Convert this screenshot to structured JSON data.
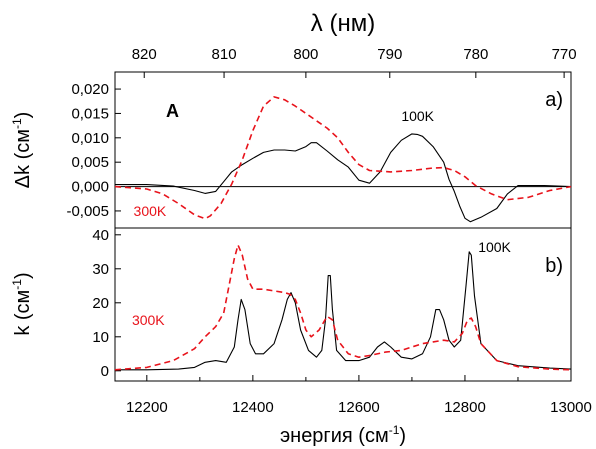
{
  "top_axis": {
    "label": "λ (нм)",
    "ticks": [
      {
        "label": "820",
        "nm": 820
      },
      {
        "label": "810",
        "nm": 810
      },
      {
        "label": "800",
        "nm": 800
      },
      {
        "label": "790",
        "nm": 790
      },
      {
        "label": "780",
        "nm": 780
      },
      {
        "label": "770",
        "nm": 770
      }
    ]
  },
  "x_axis": {
    "label_main": "энергия  (см",
    "label_sup": "-1",
    "label_close": ")",
    "range": [
      12140,
      13000
    ],
    "tick_labels": [
      "12200",
      "12400",
      "12600",
      "12800",
      "13000"
    ]
  },
  "chart_data": [
    {
      "id": "a",
      "type": "line",
      "panel_label": "a)",
      "letter": "A",
      "ylabel_main": "Δk (см",
      "ylabel_sup": "-1",
      "ylabel_close": ")",
      "ylim": [
        -0.0085,
        0.0235
      ],
      "yticks": [
        -0.005,
        0.0,
        0.005,
        0.01,
        0.015,
        0.02
      ],
      "ytick_labels": [
        "-0,005",
        "0,000",
        "0,005",
        "0,010",
        "0,015",
        "0,020"
      ],
      "zero_line": true,
      "series": [
        {
          "name": "100K",
          "color": "#000000",
          "dash": "",
          "x": [
            12140,
            12200,
            12250,
            12290,
            12310,
            12330,
            12345,
            12360,
            12380,
            12400,
            12420,
            12440,
            12460,
            12480,
            12500,
            12510,
            12520,
            12540,
            12560,
            12580,
            12600,
            12620,
            12640,
            12660,
            12680,
            12700,
            12710,
            12720,
            12740,
            12760,
            12770,
            12780,
            12790,
            12800,
            12810,
            12830,
            12860,
            12880,
            12900,
            12950,
            13000
          ],
          "y": [
            0.0004,
            0.0004,
            0.0001,
            -0.0008,
            -0.0014,
            -0.001,
            0.001,
            0.003,
            0.0045,
            0.0058,
            0.007,
            0.0075,
            0.0075,
            0.0073,
            0.0082,
            0.009,
            0.009,
            0.0073,
            0.0055,
            0.004,
            0.0013,
            0.0007,
            0.003,
            0.007,
            0.0095,
            0.0108,
            0.0107,
            0.0103,
            0.0082,
            0.005,
            0.0015,
            -0.001,
            -0.004,
            -0.0065,
            -0.0072,
            -0.0063,
            -0.0045,
            -0.0015,
            0.0002,
            0.0002,
            0.0
          ]
        },
        {
          "name": "300K",
          "color": "#e8131b",
          "dash": "6,4",
          "x": [
            12140,
            12200,
            12230,
            12260,
            12290,
            12310,
            12320,
            12340,
            12360,
            12380,
            12400,
            12420,
            12440,
            12460,
            12480,
            12500,
            12520,
            12540,
            12560,
            12580,
            12600,
            12620,
            12660,
            12700,
            12740,
            12760,
            12780,
            12800,
            12820,
            12850,
            12880,
            12920,
            12960,
            13000
          ],
          "y": [
            0.0,
            -0.0005,
            -0.0015,
            -0.0035,
            -0.0058,
            -0.0066,
            -0.006,
            -0.0035,
            0.0005,
            0.0055,
            0.0115,
            0.0165,
            0.0184,
            0.0178,
            0.0165,
            0.015,
            0.0135,
            0.012,
            0.01,
            0.007,
            0.0045,
            0.0033,
            0.003,
            0.0033,
            0.0038,
            0.0039,
            0.0033,
            0.002,
            0.0002,
            -0.0015,
            -0.0027,
            -0.0022,
            -0.0008,
            0.0
          ]
        }
      ],
      "annotations": [
        {
          "text": "100K",
          "color": "#000000",
          "x": 12680,
          "y": 0.0135
        },
        {
          "text": "300K",
          "color": "#e8131b",
          "x": 12175,
          "y": -0.006
        }
      ]
    },
    {
      "id": "b",
      "type": "line",
      "panel_label": "b)",
      "ylabel_main": "k (см",
      "ylabel_sup": "-1",
      "ylabel_close": ")",
      "ylim": [
        -3,
        42
      ],
      "yticks": [
        0,
        10,
        20,
        30,
        40
      ],
      "ytick_labels": [
        "0",
        "10",
        "20",
        "30",
        "40"
      ],
      "zero_line": false,
      "series": [
        {
          "name": "100K",
          "color": "#000000",
          "dash": "",
          "x": [
            12140,
            12200,
            12260,
            12290,
            12310,
            12330,
            12350,
            12365,
            12372,
            12378,
            12385,
            12395,
            12405,
            12420,
            12440,
            12455,
            12465,
            12472,
            12480,
            12490,
            12505,
            12520,
            12530,
            12537,
            12542,
            12546,
            12550,
            12558,
            12575,
            12600,
            12620,
            12635,
            12648,
            12660,
            12680,
            12700,
            12720,
            12735,
            12745,
            12752,
            12760,
            12770,
            12780,
            12792,
            12802,
            12808,
            12812,
            12818,
            12830,
            12860,
            12900,
            12960,
            13000
          ],
          "y": [
            0.3,
            0.3,
            0.5,
            1.0,
            2.5,
            3.0,
            2.5,
            7,
            15,
            21,
            18,
            8,
            5,
            5,
            8,
            15,
            21,
            23,
            20,
            12,
            6,
            4,
            6,
            15,
            28,
            28,
            18,
            6,
            3,
            3,
            4,
            7,
            8.5,
            7,
            4,
            3.5,
            5,
            10,
            18,
            18,
            15,
            9,
            7,
            9,
            25,
            35,
            34,
            22,
            8,
            3,
            1.5,
            0.8,
            0.5
          ]
        },
        {
          "name": "300K",
          "color": "#e8131b",
          "dash": "6,4",
          "x": [
            12140,
            12200,
            12250,
            12290,
            12310,
            12330,
            12345,
            12355,
            12365,
            12372,
            12380,
            12390,
            12400,
            12420,
            12440,
            12460,
            12470,
            12480,
            12490,
            12500,
            12510,
            12525,
            12540,
            12550,
            12560,
            12580,
            12600,
            12620,
            12650,
            12680,
            12700,
            12720,
            12740,
            12760,
            12780,
            12795,
            12805,
            12812,
            12820,
            12830,
            12860,
            12900,
            12960,
            13000
          ],
          "y": [
            0.3,
            1.0,
            3.0,
            6.5,
            10,
            13,
            17,
            25,
            33,
            37,
            34,
            27,
            24,
            24,
            23.5,
            23,
            22.5,
            21,
            17,
            12,
            10,
            12,
            16,
            15,
            9,
            5,
            4,
            4.5,
            5.5,
            6,
            7,
            8,
            8.5,
            9,
            8.5,
            11,
            15,
            15.5,
            13,
            8,
            3,
            1.2,
            0.5,
            0.3
          ]
        }
      ],
      "annotations": [
        {
          "text": "100K",
          "color": "#000000",
          "x": 12825,
          "y": 35
        },
        {
          "text": "300K",
          "color": "#e8131b",
          "x": 12172,
          "y": 13.5
        }
      ]
    }
  ]
}
